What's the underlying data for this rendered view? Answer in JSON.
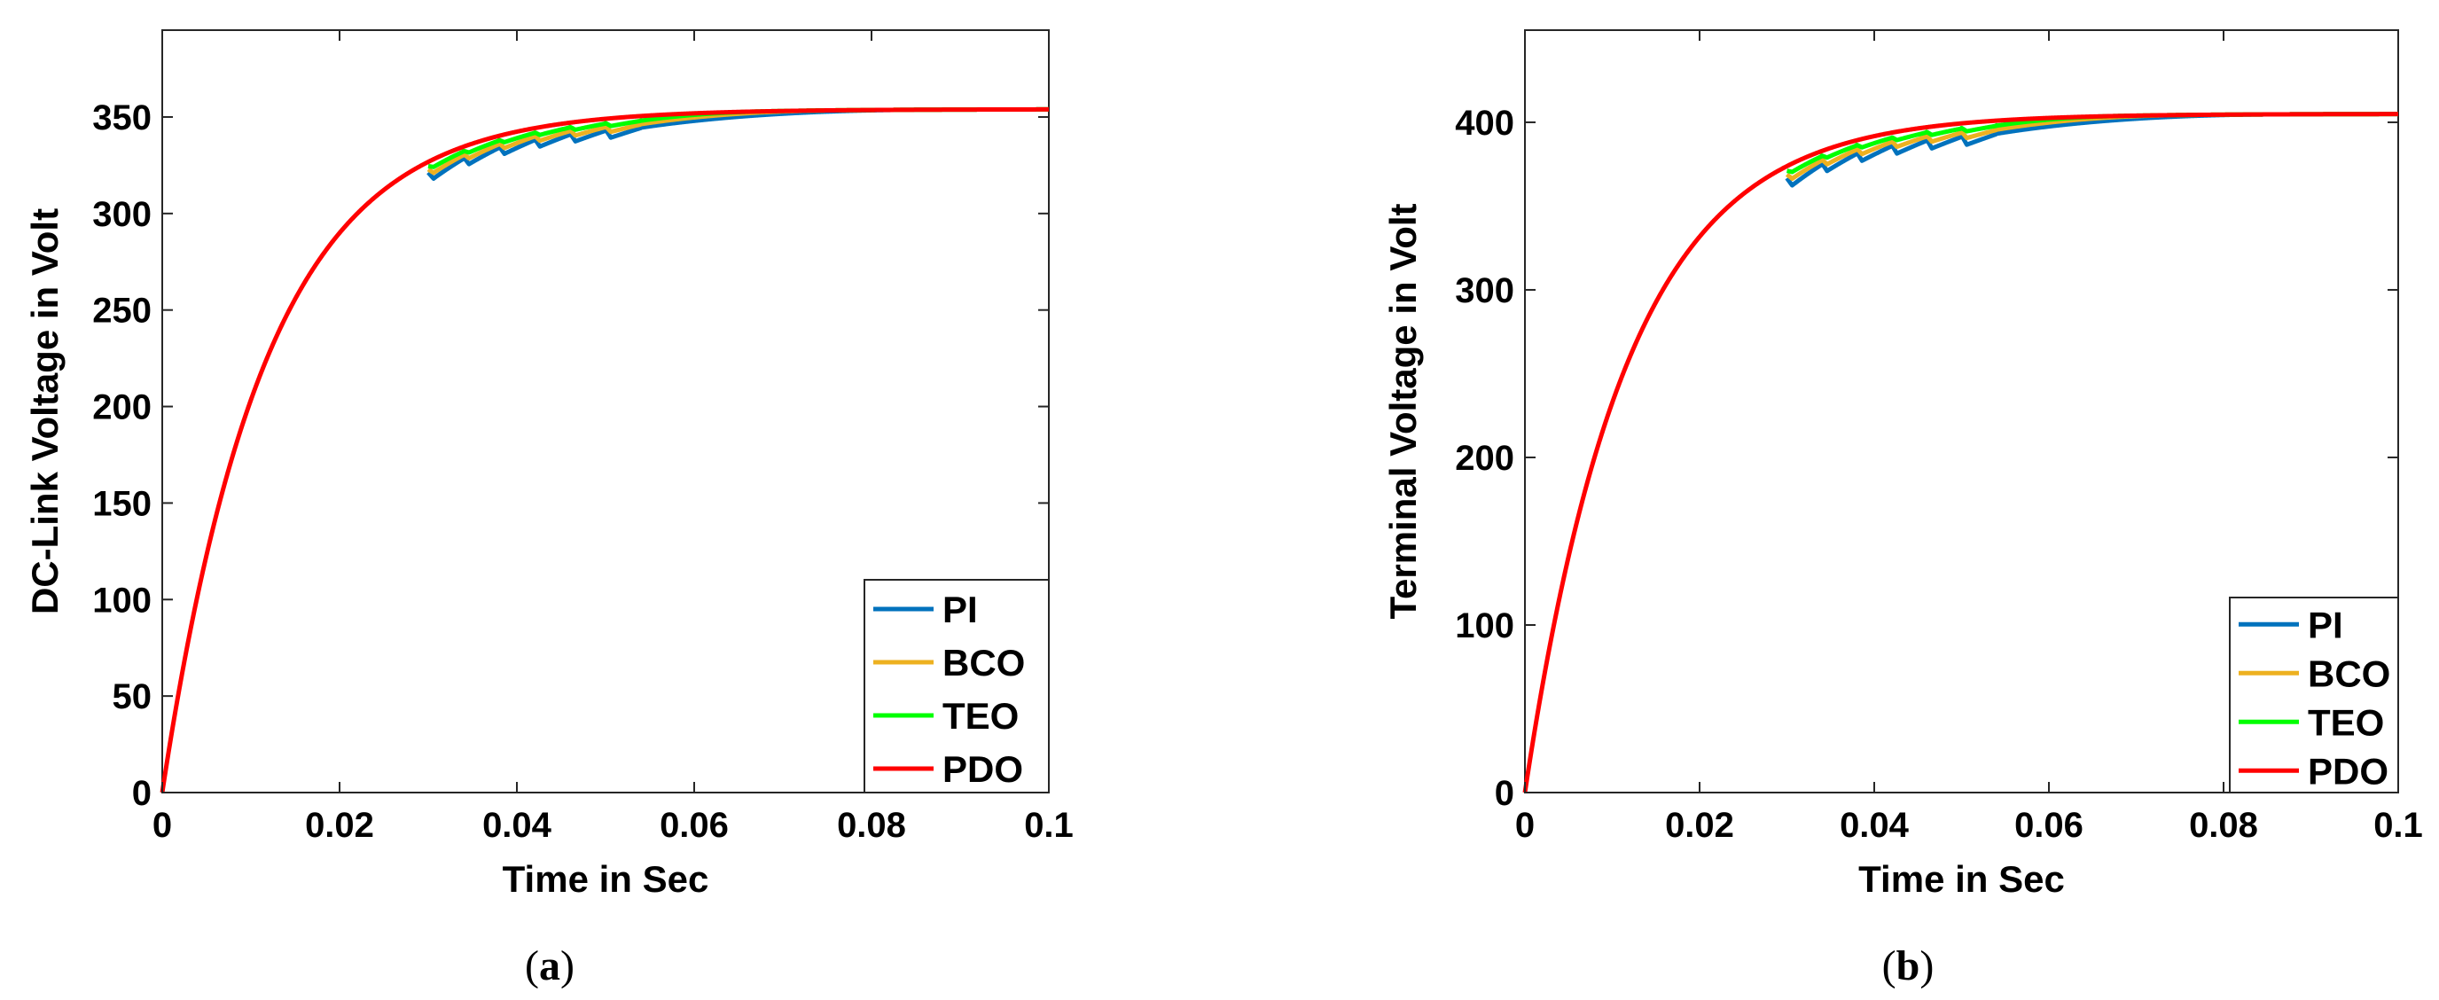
{
  "chart_data": [
    {
      "type": "line",
      "caption_open": "(",
      "caption_letter": "a",
      "caption_close": ")",
      "xlabel": "Time in Sec",
      "ylabel": "DC-Link Voltage in Volt",
      "xlim": [
        0,
        0.1
      ],
      "ylim": [
        0,
        395
      ],
      "xticks": [
        0,
        0.02,
        0.04,
        0.06,
        0.08,
        0.1
      ],
      "xtick_labels": [
        "0",
        "0.02",
        "0.04",
        "0.06",
        "0.08",
        "0.1"
      ],
      "yticks": [
        0,
        50,
        100,
        150,
        200,
        250,
        300,
        350
      ],
      "ytick_labels": [
        "0",
        "50",
        "100",
        "150",
        "200",
        "250",
        "300",
        "350"
      ],
      "legend_position": "bottom-right",
      "final_value": 354,
      "time_constant": 0.0117,
      "disturbance": {
        "start": 0.03,
        "end": 0.054,
        "pulses": 6
      },
      "series": [
        {
          "name": "PI",
          "color": "#0072BD",
          "dip": 10,
          "recovery_end": 0.085
        },
        {
          "name": "BCO",
          "color": "#EDB120",
          "dip": 7,
          "recovery_end": 0.075
        },
        {
          "name": "TEO",
          "color": "#00FF00",
          "dip": 4,
          "recovery_end": 0.068
        },
        {
          "name": "PDO",
          "color": "#FF0000",
          "dip": 0,
          "recovery_end": 0.03
        }
      ]
    },
    {
      "type": "line",
      "caption_open": "(",
      "caption_letter": "b",
      "caption_close": ")",
      "xlabel": "Time in Sec",
      "ylabel": "Terminal Voltage in Volt",
      "xlim": [
        0,
        0.1
      ],
      "ylim": [
        0,
        455
      ],
      "xticks": [
        0,
        0.02,
        0.04,
        0.06,
        0.08,
        0.1
      ],
      "xtick_labels": [
        "0",
        "0.02",
        "0.04",
        "0.06",
        "0.08",
        "0.1"
      ],
      "yticks": [
        0,
        100,
        200,
        300,
        400
      ],
      "ytick_labels": [
        "0",
        "100",
        "200",
        "300",
        "400"
      ],
      "legend_position": "bottom-right",
      "final_value": 405,
      "time_constant": 0.0117,
      "disturbance": {
        "start": 0.03,
        "end": 0.054,
        "pulses": 6
      },
      "series": [
        {
          "name": "PI",
          "color": "#0072BD",
          "dip": 13,
          "recovery_end": 0.085
        },
        {
          "name": "BCO",
          "color": "#EDB120",
          "dip": 9,
          "recovery_end": 0.075
        },
        {
          "name": "TEO",
          "color": "#00FF00",
          "dip": 5,
          "recovery_end": 0.068
        },
        {
          "name": "PDO",
          "color": "#FF0000",
          "dip": 0,
          "recovery_end": 0.03
        }
      ]
    }
  ]
}
